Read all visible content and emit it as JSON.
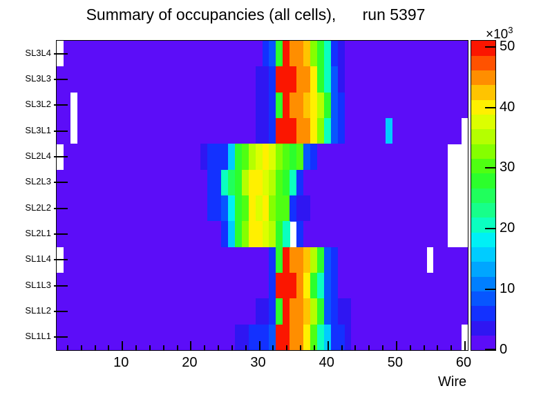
{
  "title": "Summary of occupancies (all cells),      run 5397",
  "x_axis": {
    "label": "Wire",
    "major_ticks": [
      10,
      20,
      30,
      40,
      50,
      60
    ],
    "minor_tick_step": 2,
    "min": 0.5,
    "max": 60.5
  },
  "y_axis": {
    "labels_top_to_bottom": [
      "SL3L4",
      "SL3L3",
      "SL3L2",
      "SL3L1",
      "SL2L4",
      "SL2L3",
      "SL2L2",
      "SL2L1",
      "SL1L4",
      "SL1L3",
      "SL1L2",
      "SL1L1"
    ]
  },
  "colorbar": {
    "multiplier_base": "×10",
    "multiplier_exponent": "3",
    "ticks": [
      0,
      10,
      20,
      30,
      40,
      50
    ],
    "vmax_thousands": 51,
    "unit_scale": 1000
  },
  "chart_data": {
    "type": "heatmap",
    "title": "Summary of occupancies (all cells),      run 5397",
    "xlabel": "Wire",
    "x_range": [
      1,
      60
    ],
    "n_wires": 60,
    "rows_top_to_bottom": [
      "SL3L4",
      "SL3L3",
      "SL3L2",
      "SL3L1",
      "SL2L4",
      "SL2L3",
      "SL2L2",
      "SL2L1",
      "SL1L4",
      "SL1L3",
      "SL1L2",
      "SL1L1"
    ],
    "legend_position": "right",
    "palette": [
      "#5C0DF8",
      "#2F16F2",
      "#1331FF",
      "#0756FF",
      "#007FFF",
      "#00A6FF",
      "#00CCFF",
      "#00F0F5",
      "#0BFFC0",
      "#17FF8A",
      "#20FF5C",
      "#2CFF2C",
      "#4FFF12",
      "#85FF00",
      "#B5FF00",
      "#DCFF00",
      "#FFF000",
      "#FFC400",
      "#FF8E00",
      "#FF5200",
      "#FB1600"
    ],
    "palette_char_map": "0123456789abcdefghijk",
    "empty_char": ".",
    "empty_means": "no data (white)",
    "approx_value_per_palette_step": 2550,
    "grid_by_row": {
      "SL3L4": ".0000000000000000000000000000023bkiihdb821000000000000000000",
      "SL3L3": "00000000000000000000000000000112kkkiigb831000000000000000000",
      "SL3L2": "00.00000000000000000000000000112bkiihgeb32000000000000000000",
      "SL3L1": "00.00000000000000000000000000112kkkiigd83200000060000000000.",
      "SL2L4": ".0000000000000000000012226bcefgfdcbc320000000000000000000...",
      "SL2L3": "0000000000000000000000228abeggfecb82000000000000000000000...",
      "SL2L2": "00000000000000000000002237bcgfgdcc21100000000000000000000...",
      "SL2L1": "00000000000000000000000026bdggfeb8.2000000000000000000000...",
      "SL1L4": ".0000000000000000000000000000002bkiiheb320000000000000.00000",
      "SL1L3": "00000000000000000000000000000002kkkigb8320000000000000000000",
      "SL1L2": "00000000000000000000000000000112bkiiheb321100000000000000000",
      "SL1L1": "00000000000000000000000000112223kkiigc86221,000000000000000."
    }
  }
}
